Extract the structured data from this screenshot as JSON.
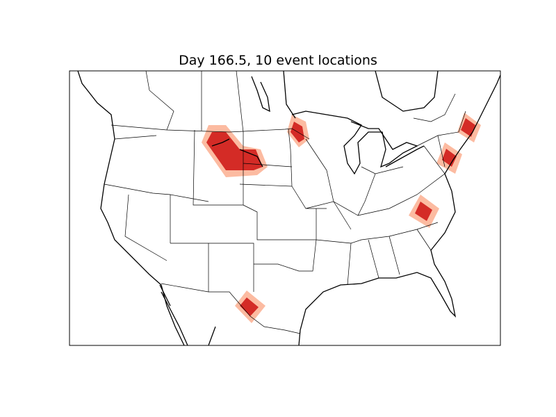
{
  "title": "Day 166.5, 10 event locations",
  "colors": {
    "event_core": "#d42b26",
    "event_halo": "#fcbba1",
    "land": "#ffffff",
    "borders": "#000000"
  },
  "map": {
    "projection": "basemap",
    "region": "Contiguous United States, southern Canada, northern Mexico",
    "event_regions": [
      "Montana / North Dakota",
      "Minnesota",
      "Texas / Mexico border",
      "Virginia / North Carolina",
      "New Jersey / New York",
      "Maine"
    ]
  }
}
